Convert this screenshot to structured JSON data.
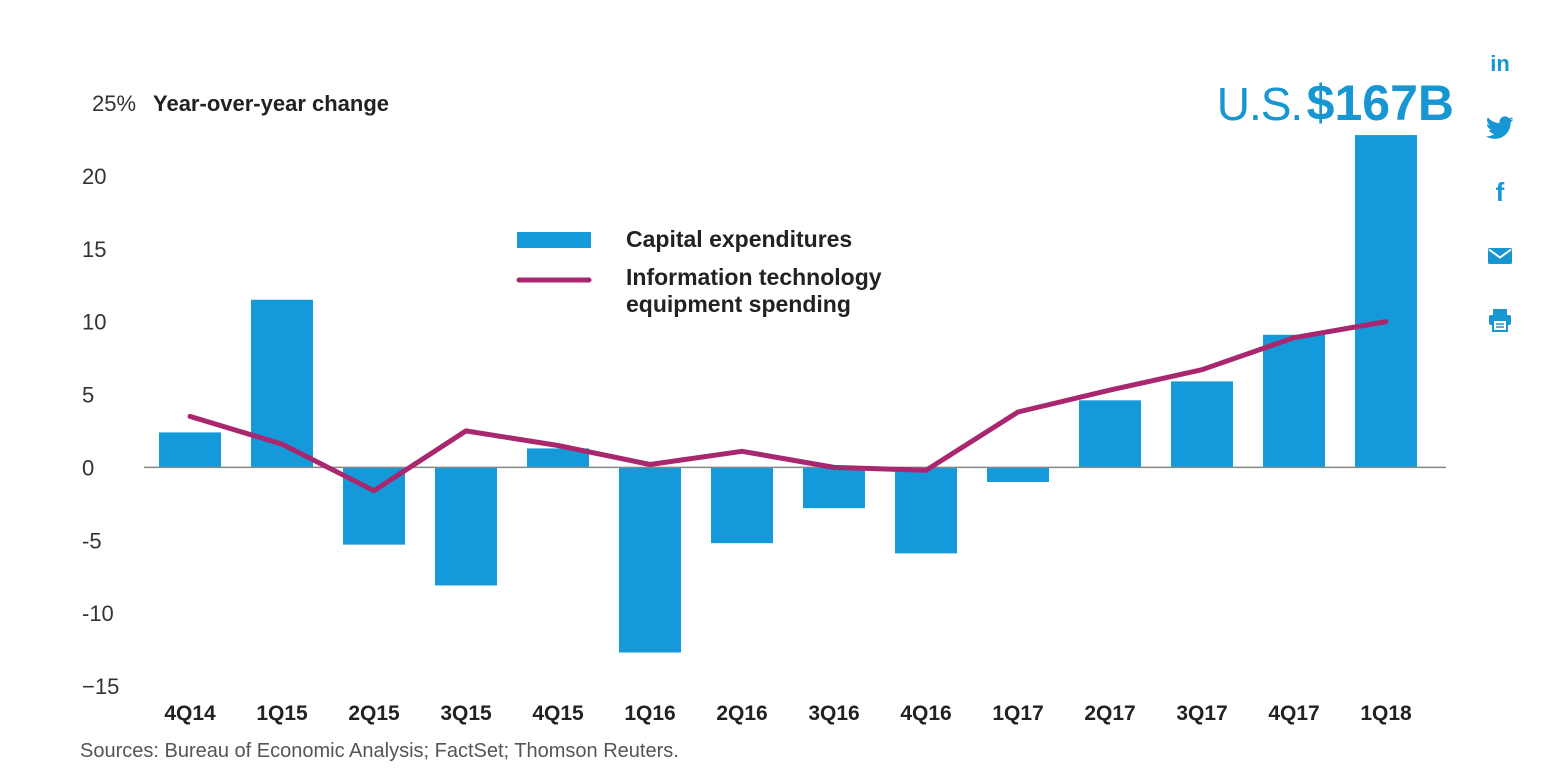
{
  "chart_data": {
    "type": "bar",
    "ylabel": "Year-over-year change",
    "ytop_label": "25%",
    "ylim": [
      -15,
      25
    ],
    "yticks": [
      -15,
      -10,
      -5,
      0,
      5,
      10,
      15,
      20
    ],
    "ytick_labels": [
      "−15",
      "-10",
      "-5",
      "0",
      "5",
      "10",
      "15",
      "20"
    ],
    "grid": false,
    "legend_position": "top-center",
    "categories": [
      "4Q14",
      "1Q15",
      "2Q15",
      "3Q15",
      "4Q15",
      "1Q16",
      "2Q16",
      "3Q16",
      "4Q16",
      "1Q17",
      "2Q17",
      "3Q17",
      "4Q17",
      "1Q18"
    ],
    "series": [
      {
        "name": "Capital expenditures",
        "kind": "bar",
        "color": "#149ad8",
        "values": [
          2.4,
          11.5,
          -5.3,
          -8.1,
          1.3,
          -12.7,
          -5.2,
          -2.8,
          -5.9,
          -1.0,
          4.6,
          5.9,
          9.1,
          22.8
        ]
      },
      {
        "name_lines": [
          "Information technology",
          "equipment spending"
        ],
        "kind": "line",
        "color": "#a8276e",
        "values": [
          3.5,
          1.6,
          -1.6,
          2.5,
          1.5,
          0.2,
          1.1,
          0.0,
          -0.2,
          3.8,
          5.3,
          6.7,
          8.9,
          10.0
        ]
      }
    ],
    "annotation": {
      "prefix": "U.S.",
      "value": "$167B",
      "category": "1Q18"
    }
  },
  "source": "Sources: Bureau of Economic Analysis; FactSet; Thomson Reuters.",
  "social": {
    "color": "#1696d2",
    "items": [
      {
        "name": "linkedin-icon",
        "glyph": "in"
      },
      {
        "name": "twitter-icon",
        "glyph": ""
      },
      {
        "name": "facebook-icon",
        "glyph": "f"
      },
      {
        "name": "email-icon",
        "glyph": ""
      },
      {
        "name": "print-icon",
        "glyph": ""
      }
    ]
  }
}
